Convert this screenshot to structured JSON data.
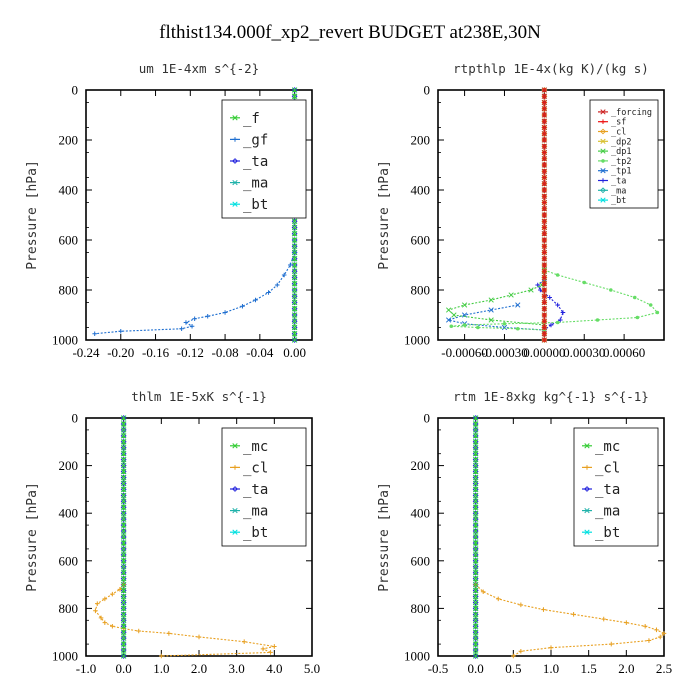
{
  "figure": {
    "title": "flthist134.000f_xp2_revert  BUDGET at238E,30N"
  },
  "colors": {
    "_f": "#33cc33",
    "_gf": "#1f6fd0",
    "_ta": "#2222dd",
    "_ma": "#20b2aa",
    "_bt": "#00e0e0",
    "_forcing": "#cc2222",
    "_sf": "#ee1111",
    "_cl": "#e8a020",
    "_dp2": "#d8c030",
    "_dp1": "#44cc44",
    "_tp2": "#66dd66",
    "_tp1": "#1f6fd0",
    "_mc": "#33cc33"
  },
  "chart_data": [
    {
      "type": "line",
      "title": "um  1E-4xm s^{-2}",
      "ylabel": "Pressure [hPa]",
      "xlim": [
        -0.24,
        0.02
      ],
      "ylim": [
        1000,
        0
      ],
      "xticks": [
        "-0.24",
        "-0.20",
        "-0.16",
        "-0.12",
        "-0.08",
        "-0.04",
        "0.00"
      ],
      "yticks": [
        "0",
        "200",
        "400",
        "600",
        "800",
        "1000"
      ],
      "legend": {
        "position": "top-right",
        "entries": [
          "_f",
          "_gf",
          "_ta",
          "_ma",
          "_bt"
        ]
      },
      "series": [
        {
          "name": "_f",
          "x": [
            0,
            0,
            0,
            0,
            0,
            0,
            0,
            0,
            0,
            0,
            0
          ],
          "y": [
            0,
            100,
            200,
            300,
            400,
            500,
            600,
            700,
            800,
            900,
            1000
          ]
        },
        {
          "name": "_gf",
          "x": [
            0,
            -0.005,
            -0.012,
            -0.02,
            -0.03,
            -0.045,
            -0.06,
            -0.08,
            -0.1,
            -0.115,
            -0.125,
            -0.118,
            -0.13,
            -0.2,
            -0.23
          ],
          "y": [
            650,
            700,
            740,
            780,
            810,
            840,
            865,
            890,
            905,
            915,
            930,
            945,
            955,
            965,
            975
          ]
        },
        {
          "name": "_ta",
          "x": [
            0,
            0,
            0,
            0,
            0,
            0
          ],
          "y": [
            0,
            200,
            400,
            600,
            800,
            1000
          ]
        },
        {
          "name": "_ma",
          "x": [
            0,
            0,
            0,
            0,
            0,
            0
          ],
          "y": [
            0,
            200,
            400,
            600,
            800,
            1000
          ]
        },
        {
          "name": "_bt",
          "x": [
            0,
            0,
            0,
            0,
            0,
            0
          ],
          "y": [
            0,
            200,
            400,
            600,
            800,
            1000
          ]
        }
      ]
    },
    {
      "type": "line",
      "title": "rtpthlp  1E-4x(kg K)/(kg s)",
      "ylabel": "Pressure [hPa]",
      "xlim": [
        -0.0008,
        0.0009
      ],
      "ylim": [
        1000,
        0
      ],
      "xticks": [
        "-0.00060",
        "-0.00030",
        "0.00000",
        "0.00030",
        "0.00060"
      ],
      "yticks": [
        "0",
        "200",
        "400",
        "600",
        "800",
        "1000"
      ],
      "legend": {
        "position": "top-right",
        "entries": [
          "_forcing",
          "_sf",
          "_cl",
          "_dp2",
          "_dp1",
          "_tp2",
          "_tp1",
          "_ta",
          "_ma",
          "_bt"
        ]
      },
      "series": [
        {
          "name": "_forcing",
          "x": [
            0,
            0,
            0,
            0,
            0,
            0,
            0,
            0,
            0,
            0,
            0
          ],
          "y": [
            0,
            100,
            200,
            300,
            400,
            500,
            600,
            700,
            800,
            900,
            1000
          ]
        },
        {
          "name": "_sf",
          "x": [
            0,
            0,
            0
          ],
          "y": [
            0,
            500,
            1000
          ]
        },
        {
          "name": "_cl",
          "x": [
            0,
            0,
            0
          ],
          "y": [
            0,
            500,
            1000
          ]
        },
        {
          "name": "_dp2",
          "x": [
            0,
            0,
            0
          ],
          "y": [
            0,
            500,
            1000
          ]
        },
        {
          "name": "_dp1",
          "x": [
            0,
            0,
            0,
            -2e-05,
            -0.0001,
            -0.00025,
            -0.0004,
            -0.0006,
            -0.00072,
            -0.00068,
            -0.0004,
            0
          ],
          "y": [
            720,
            740,
            760,
            780,
            800,
            820,
            840,
            860,
            880,
            900,
            920,
            940
          ]
        },
        {
          "name": "_tp2",
          "x": [
            0,
            0.0001,
            0.0003,
            0.0005,
            0.00068,
            0.0008,
            0.00085,
            0.0007,
            0.0004,
            0.0001,
            -0.0003,
            -0.0006,
            -0.0007,
            -0.0005,
            -0.0002,
            0
          ],
          "y": [
            720,
            740,
            770,
            800,
            830,
            860,
            890,
            910,
            920,
            930,
            935,
            940,
            945,
            950,
            955,
            960
          ]
        },
        {
          "name": "_tp1",
          "x": [
            -0.0002,
            -0.0004,
            -0.0006,
            -0.00072,
            -0.0006,
            -0.0003,
            0
          ],
          "y": [
            860,
            880,
            900,
            920,
            935,
            950,
            960
          ]
        },
        {
          "name": "_ta",
          "x": [
            0,
            -5e-05,
            -3e-05,
            4e-05,
            0.0001,
            0.00014,
            0.00012,
            5e-05,
            0
          ],
          "y": [
            760,
            780,
            800,
            830,
            860,
            890,
            920,
            940,
            960
          ]
        },
        {
          "name": "_ma",
          "x": [
            0,
            0,
            0
          ],
          "y": [
            0,
            500,
            1000
          ]
        },
        {
          "name": "_bt",
          "x": [
            0,
            0,
            0
          ],
          "y": [
            0,
            500,
            1000
          ]
        }
      ]
    },
    {
      "type": "line",
      "title": "thlm  1E-5xK s^{-1}",
      "ylabel": "Pressure [hPa]",
      "xlim": [
        -1.0,
        5.0
      ],
      "ylim": [
        1000,
        0
      ],
      "xticks": [
        "-1.0",
        "0.0",
        "1.0",
        "2.0",
        "3.0",
        "4.0",
        "5.0"
      ],
      "yticks": [
        "0",
        "200",
        "400",
        "600",
        "800",
        "1000"
      ],
      "legend": {
        "position": "top-right",
        "entries": [
          "_mc",
          "_cl",
          "_ta",
          "_ma",
          "_bt"
        ]
      },
      "series": [
        {
          "name": "_mc",
          "x": [
            0,
            0,
            0,
            0,
            0,
            0,
            0,
            0,
            0,
            0,
            0
          ],
          "y": [
            0,
            100,
            200,
            300,
            400,
            500,
            600,
            700,
            800,
            900,
            1000
          ]
        },
        {
          "name": "_cl",
          "x": [
            0,
            -0.1,
            -0.3,
            -0.5,
            -0.7,
            -0.75,
            -0.6,
            -0.5,
            -0.3,
            0,
            0.4,
            1.2,
            2.0,
            3.2,
            4.0,
            3.7,
            3.9,
            1.0
          ],
          "y": [
            700,
            720,
            740,
            760,
            780,
            810,
            840,
            860,
            875,
            885,
            895,
            905,
            920,
            940,
            960,
            970,
            985,
            1000
          ]
        },
        {
          "name": "_ta",
          "x": [
            0,
            0,
            0
          ],
          "y": [
            0,
            500,
            1000
          ]
        },
        {
          "name": "_ma",
          "x": [
            0,
            0,
            0
          ],
          "y": [
            0,
            500,
            1000
          ]
        },
        {
          "name": "_bt",
          "x": [
            0,
            0,
            0
          ],
          "y": [
            0,
            500,
            1000
          ]
        }
      ]
    },
    {
      "type": "line",
      "title": "rtm  1E-8xkg kg^{-1} s^{-1}",
      "ylabel": "Pressure [hPa]",
      "xlim": [
        -0.5,
        2.5
      ],
      "ylim": [
        1000,
        0
      ],
      "xticks": [
        "-0.5",
        "0.0",
        "0.5",
        "1.0",
        "1.5",
        "2.0",
        "2.5"
      ],
      "yticks": [
        "0",
        "200",
        "400",
        "600",
        "800",
        "1000"
      ],
      "legend": {
        "position": "top-right",
        "entries": [
          "_mc",
          "_cl",
          "_ta",
          "_ma",
          "_bt"
        ]
      },
      "series": [
        {
          "name": "_mc",
          "x": [
            0,
            0,
            0,
            0,
            0,
            0,
            0,
            0,
            0,
            0,
            0
          ],
          "y": [
            0,
            100,
            200,
            300,
            400,
            500,
            600,
            700,
            800,
            900,
            1000
          ]
        },
        {
          "name": "_cl",
          "x": [
            0,
            0.1,
            0.3,
            0.6,
            0.9,
            1.3,
            1.7,
            2.0,
            2.25,
            2.4,
            2.5,
            2.45,
            2.3,
            1.8,
            1.0,
            0.6,
            0.5
          ],
          "y": [
            700,
            730,
            760,
            785,
            805,
            825,
            845,
            860,
            875,
            890,
            905,
            920,
            935,
            950,
            965,
            980,
            1000
          ]
        },
        {
          "name": "_ta",
          "x": [
            0,
            0,
            0
          ],
          "y": [
            0,
            500,
            1000
          ]
        },
        {
          "name": "_ma",
          "x": [
            0,
            0,
            0
          ],
          "y": [
            0,
            500,
            1000
          ]
        },
        {
          "name": "_bt",
          "x": [
            0,
            0,
            0
          ],
          "y": [
            0,
            500,
            1000
          ]
        }
      ]
    }
  ]
}
